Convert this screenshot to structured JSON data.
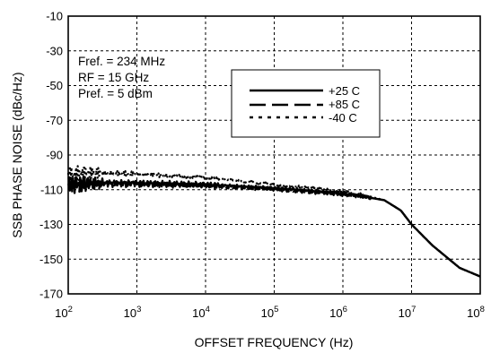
{
  "chart_data": {
    "type": "line",
    "title": "",
    "xlabel": "OFFSET FREQUENCY (Hz)",
    "ylabel": "SSB PHASE NOISE (dBc/Hz)",
    "x_scale": "log",
    "xlim": [
      100,
      100000000
    ],
    "ylim": [
      -170,
      -10
    ],
    "grid": true,
    "x_ticks": [
      {
        "base": "10",
        "exp": "2"
      },
      {
        "base": "10",
        "exp": "3"
      },
      {
        "base": "10",
        "exp": "4"
      },
      {
        "base": "10",
        "exp": "5"
      },
      {
        "base": "10",
        "exp": "6"
      },
      {
        "base": "10",
        "exp": "7"
      },
      {
        "base": "10",
        "exp": "8"
      }
    ],
    "y_ticks": [
      "-10",
      "-30",
      "-50",
      "-70",
      "-90",
      "-110",
      "-130",
      "-150",
      "-170"
    ],
    "annotations": [
      "Fref. = 234 MHz",
      "RF = 15 GHz",
      "Pref. = 5 dBm"
    ],
    "legend_position": "upper-center",
    "series": [
      {
        "name": "+25 C",
        "style": "solid",
        "x": [
          100,
          200,
          1000,
          10000,
          100000,
          1000000,
          2000000,
          4000000,
          7000000,
          10000000,
          20000000,
          50000000,
          100000000
        ],
        "y": [
          -107,
          -106,
          -106,
          -107,
          -109,
          -112,
          -114,
          -116,
          -122,
          -130,
          -142,
          -155,
          -160
        ]
      },
      {
        "name": "+85 C",
        "style": "dashed",
        "x": [
          100,
          200,
          1000,
          10000,
          100000,
          1000000,
          2000000,
          4000000,
          7000000,
          10000000,
          20000000,
          50000000,
          100000000
        ],
        "y": [
          -108,
          -107,
          -107,
          -108,
          -110,
          -113,
          -114,
          -116,
          -122,
          -130,
          -142,
          -155,
          -160
        ]
      },
      {
        "name": "-40 C",
        "style": "dotted",
        "x": [
          100,
          200,
          1000,
          10000,
          100000,
          1000000,
          2000000,
          4000000,
          7000000,
          10000000,
          20000000,
          50000000,
          100000000
        ],
        "y": [
          -102,
          -100,
          -101,
          -103,
          -107,
          -111,
          -113,
          -116,
          -122,
          -130,
          -142,
          -155,
          -160
        ]
      }
    ]
  }
}
